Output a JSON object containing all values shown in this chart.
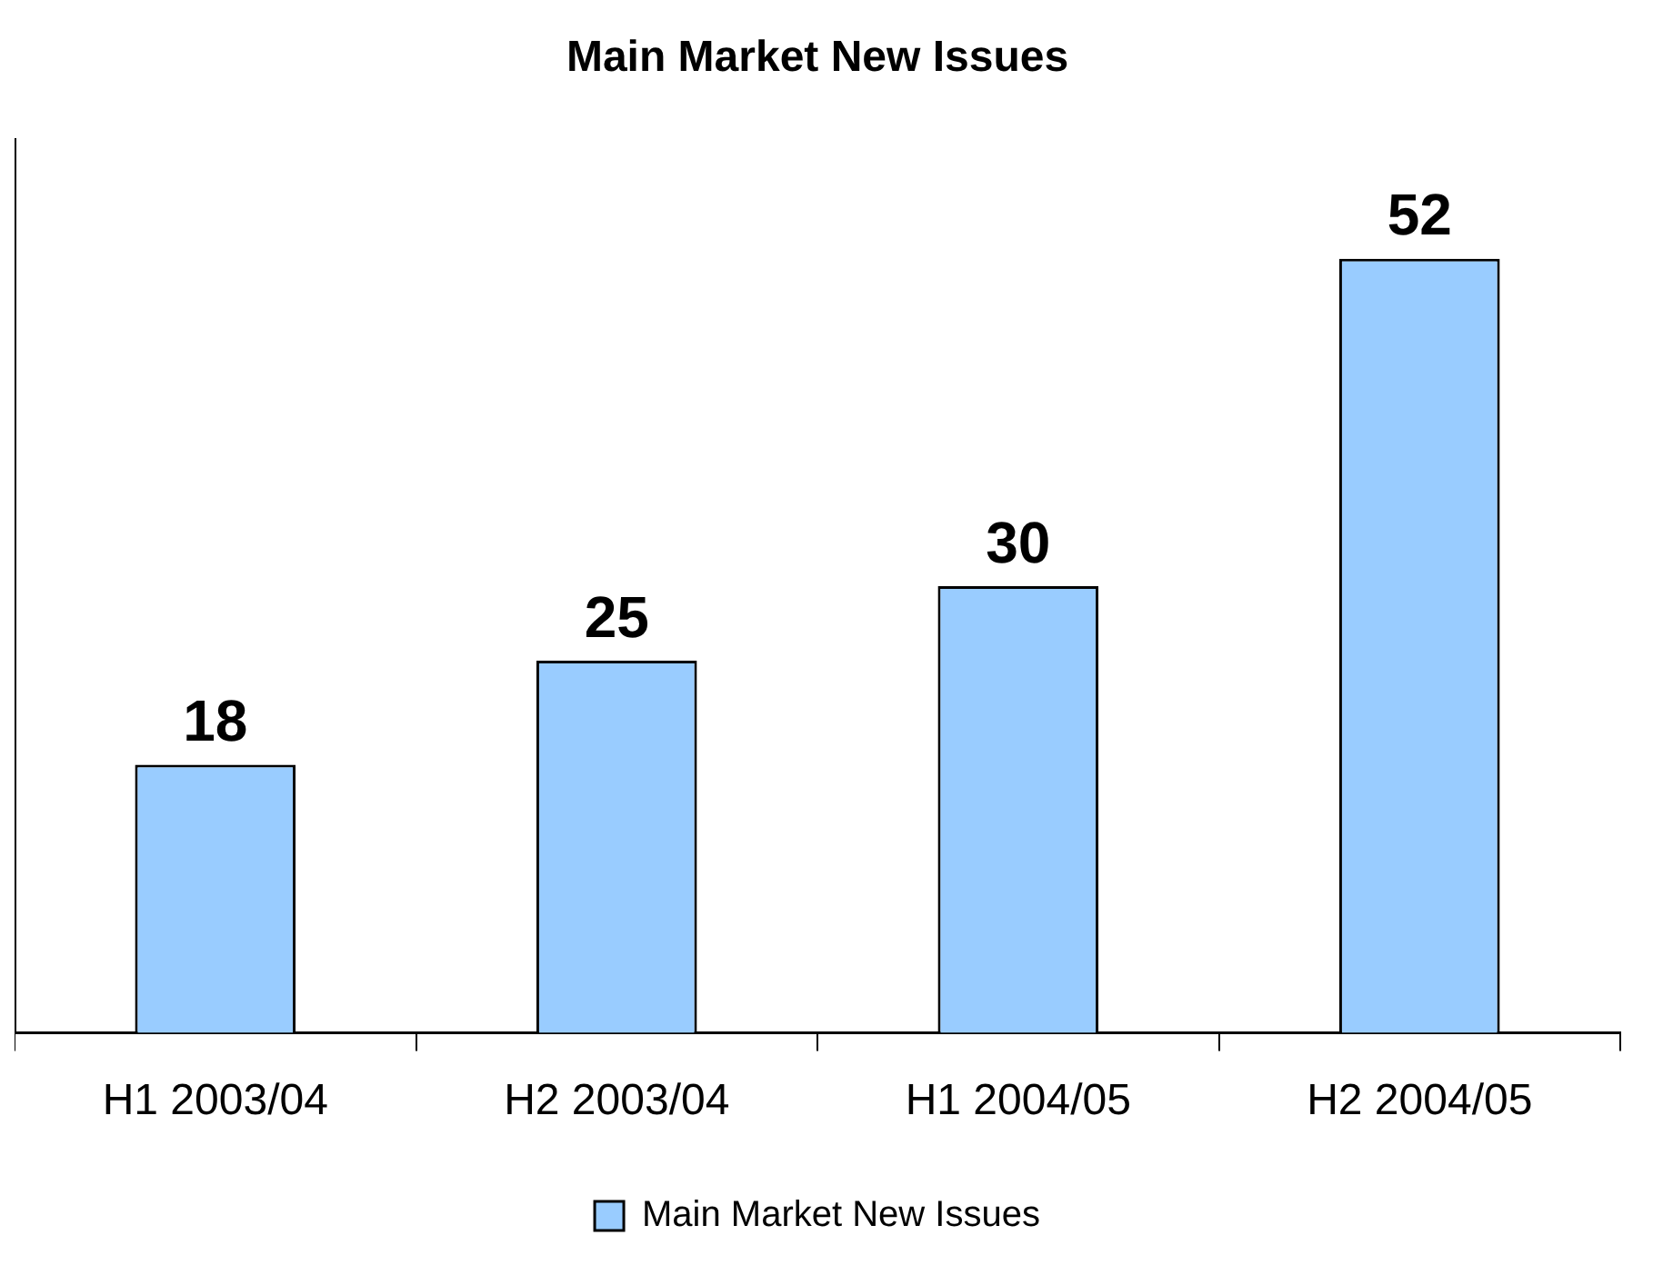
{
  "chart_data": {
    "type": "bar",
    "title": "Main Market New Issues",
    "categories": [
      "H1 2003/04",
      "H2 2003/04",
      "H1 2004/05",
      "H2 2004/05"
    ],
    "series": [
      {
        "name": "Main Market New Issues",
        "color": "#99ccff",
        "values": [
          18,
          25,
          30,
          52
        ]
      }
    ],
    "data_labels": true,
    "legend": "bottom",
    "grid": false,
    "tick_labels": "x"
  }
}
